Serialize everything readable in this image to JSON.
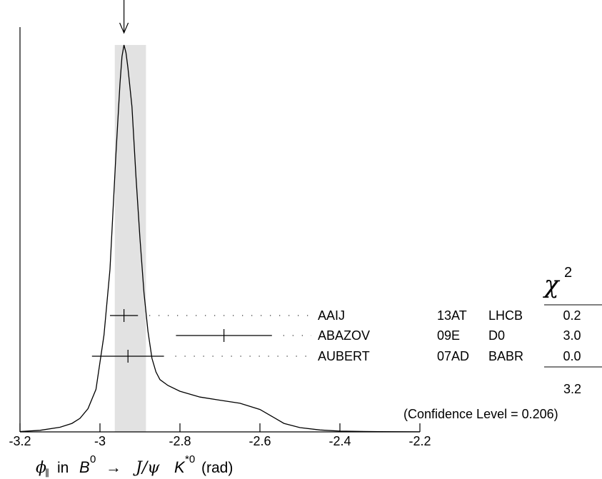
{
  "chart_data": {
    "type": "ideogram",
    "xlabel": {
      "phi": "ϕ",
      "phi_sub": "∥",
      "in": "in",
      "B": "B",
      "B_sup": "0",
      "arrow": "→",
      "jpsi": "J/ψ",
      "K": "K",
      "K_sup": "*0",
      "unit": "(rad)"
    },
    "xlim": [
      -3.2,
      -2.2
    ],
    "xticks": [
      "-3.2",
      "-3",
      "-2.8",
      "-2.6",
      "-2.4",
      "-2.2"
    ],
    "xtick_values": [
      -3.2,
      -3.0,
      -2.8,
      -2.6,
      -2.4,
      -2.2
    ],
    "average": -2.94,
    "band": [
      -2.963,
      -2.885
    ],
    "ideogram_curve": [
      [
        -3.2,
        0.001
      ],
      [
        -3.15,
        0.004
      ],
      [
        -3.1,
        0.012
      ],
      [
        -3.07,
        0.022
      ],
      [
        -3.05,
        0.035
      ],
      [
        -3.03,
        0.06
      ],
      [
        -3.01,
        0.11
      ],
      [
        -2.99,
        0.25
      ],
      [
        -2.975,
        0.42
      ],
      [
        -2.96,
        0.72
      ],
      [
        -2.95,
        0.9
      ],
      [
        -2.945,
        0.97
      ],
      [
        -2.94,
        1.0
      ],
      [
        -2.935,
        0.98
      ],
      [
        -2.93,
        0.94
      ],
      [
        -2.92,
        0.84
      ],
      [
        -2.91,
        0.66
      ],
      [
        -2.9,
        0.5
      ],
      [
        -2.89,
        0.36
      ],
      [
        -2.88,
        0.26
      ],
      [
        -2.87,
        0.19
      ],
      [
        -2.86,
        0.155
      ],
      [
        -2.85,
        0.135
      ],
      [
        -2.83,
        0.12
      ],
      [
        -2.8,
        0.105
      ],
      [
        -2.75,
        0.09
      ],
      [
        -2.7,
        0.082
      ],
      [
        -2.65,
        0.074
      ],
      [
        -2.6,
        0.058
      ],
      [
        -2.57,
        0.04
      ],
      [
        -2.54,
        0.022
      ],
      [
        -2.5,
        0.011
      ],
      [
        -2.45,
        0.005
      ],
      [
        -2.4,
        0.002
      ],
      [
        -2.3,
        0.0005
      ],
      [
        -2.2,
        0.0002
      ]
    ],
    "measurements": [
      {
        "name": "AAIJ",
        "ref": "13AT",
        "exp": "LHCB",
        "value": -2.94,
        "err": 0.035,
        "chi2": "0.2"
      },
      {
        "name": "ABAZOV",
        "ref": "09E",
        "exp": "D0",
        "value": -2.69,
        "err": 0.12,
        "chi2": "3.0"
      },
      {
        "name": "AUBERT",
        "ref": "07AD",
        "exp": "BABR",
        "value": -2.93,
        "err": 0.09,
        "chi2": "0.0"
      }
    ],
    "chi2_header": "χ",
    "chi2_header_sup": "2",
    "chi2_total": "3.2",
    "confidence_level": "(Confidence Level = 0.206)"
  }
}
